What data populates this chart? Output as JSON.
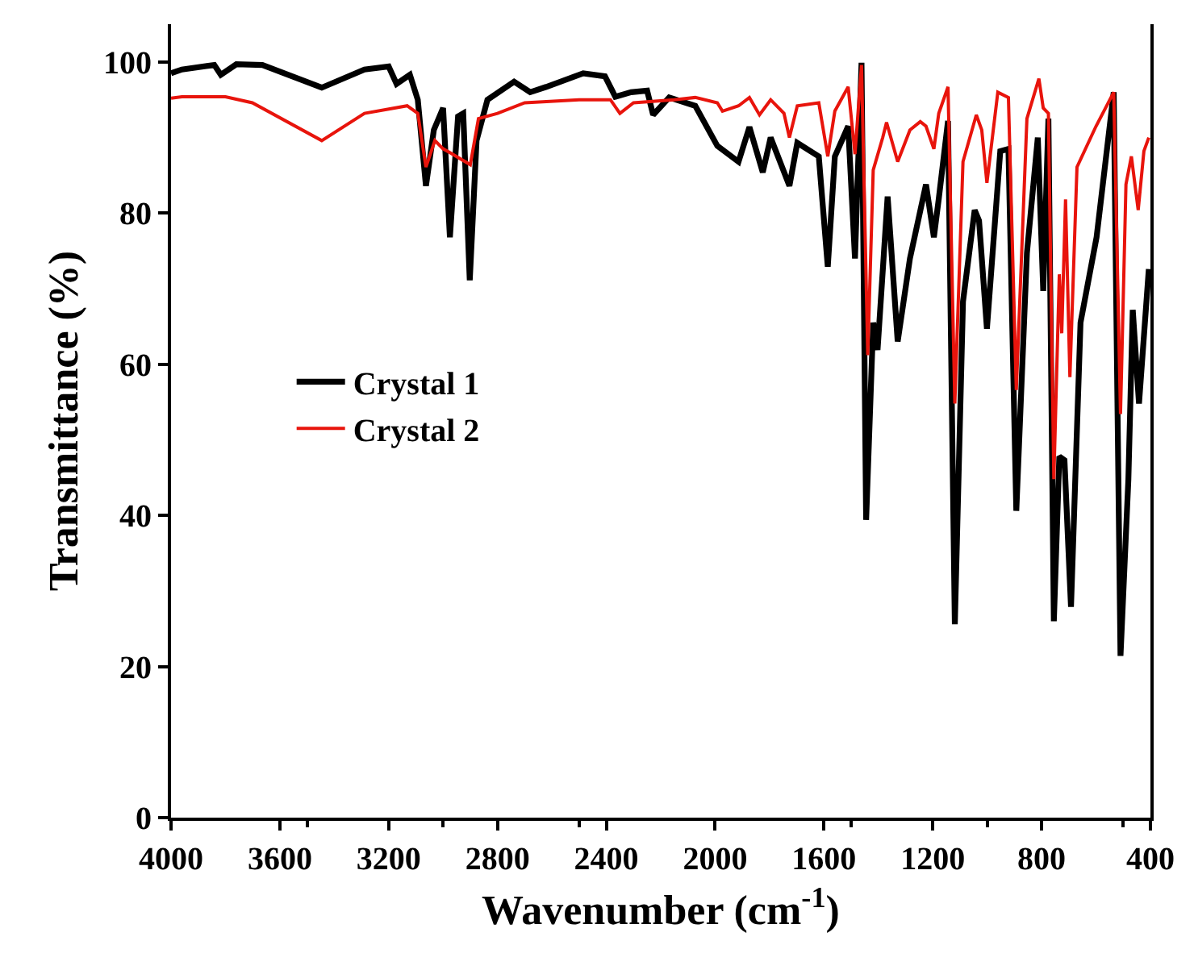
{
  "chart_data": {
    "type": "line",
    "xlabel": "Wavenumber (cm$^{-1}$)",
    "ylabel": "Transmittance (%)",
    "xlim": [
      4000,
      400
    ],
    "xticks": [
      4000,
      3600,
      3200,
      2800,
      2400,
      2000,
      1600,
      1200,
      800,
      400
    ],
    "ylim": [
      0,
      105
    ],
    "yticks": [
      0,
      20,
      40,
      60,
      80,
      100
    ],
    "legend": "left",
    "line_style": "solid",
    "series": [
      {
        "name": "Crystal 1",
        "color": "#000000",
        "x": [
          4000,
          3960,
          3841,
          3817,
          3760,
          3664,
          3446,
          3289,
          3200,
          3171,
          3122,
          3093,
          3063,
          3034,
          3000,
          2975,
          2945,
          2926,
          2902,
          2877,
          2837,
          2739,
          2680,
          2621,
          2485,
          2405,
          2367,
          2309,
          2250,
          2228,
          2169,
          2073,
          1992,
          1914,
          1874,
          1825,
          1796,
          1727,
          1698,
          1619,
          1586,
          1560,
          1511,
          1486,
          1462,
          1445,
          1419,
          1403,
          1366,
          1329,
          1284,
          1225,
          1196,
          1178,
          1144,
          1119,
          1089,
          1046,
          1030,
          1001,
          952,
          922,
          893,
          854,
          814,
          794,
          775,
          755,
          735,
          716,
          692,
          657,
          598,
          535,
          510,
          481,
          465,
          442,
          406
        ],
        "values": [
          98.5,
          99,
          99.6,
          98.3,
          99.7,
          99.6,
          96.6,
          99,
          99.4,
          97.1,
          98.3,
          95,
          83.6,
          91,
          93.9,
          76.8,
          92.8,
          93.2,
          71.1,
          89.6,
          95,
          97.4,
          96,
          96.7,
          98.5,
          98.1,
          95.4,
          96,
          96.2,
          93,
          95.3,
          94.2,
          88.9,
          86.8,
          91.4,
          85.4,
          90,
          83.6,
          89.3,
          87.5,
          72.9,
          87.5,
          91.5,
          74,
          99.9,
          39.4,
          65.5,
          61.9,
          82.2,
          63,
          74,
          83.8,
          76.8,
          81.9,
          92.2,
          25.6,
          68.3,
          80.4,
          79,
          64.7,
          88.2,
          88.5,
          40.6,
          74.7,
          90,
          69.7,
          92.5,
          26,
          47.8,
          47.3,
          27.9,
          65.5,
          76.8,
          96,
          21.4,
          44.8,
          67.2,
          54.8,
          72.6
        ]
      },
      {
        "name": "Crystal 2",
        "color": "#e8140c",
        "x": [
          4000,
          3960,
          3800,
          3701,
          3446,
          3289,
          3132,
          3093,
          3063,
          3030,
          3000,
          2975,
          2900,
          2870,
          2800,
          2700,
          2500,
          2385,
          2350,
          2300,
          2150,
          2073,
          1992,
          1973,
          1914,
          1874,
          1837,
          1796,
          1747,
          1727,
          1698,
          1619,
          1586,
          1560,
          1511,
          1486,
          1462,
          1439,
          1419,
          1384,
          1370,
          1329,
          1284,
          1246,
          1225,
          1196,
          1178,
          1144,
          1119,
          1089,
          1040,
          1020,
          1001,
          961,
          922,
          893,
          854,
          810,
          794,
          775,
          755,
          735,
          726,
          712,
          696,
          670,
          600,
          535,
          510,
          490,
          470,
          445,
          424,
          406
        ],
        "values": [
          95.2,
          95.4,
          95.4,
          94.6,
          89.6,
          93.2,
          94.2,
          93.2,
          86.1,
          89.6,
          88.5,
          88,
          86.4,
          92.5,
          93.2,
          94.6,
          95,
          95,
          93.2,
          94.6,
          95,
          95.3,
          94.6,
          93.5,
          94.2,
          95.3,
          93,
          95,
          93.2,
          90,
          94.2,
          94.6,
          87.5,
          93.5,
          96.7,
          87.8,
          99.6,
          61.2,
          85.7,
          90,
          92,
          86.8,
          91,
          92.1,
          91.5,
          88.5,
          93.2,
          96.7,
          54.8,
          86.8,
          93,
          91,
          84,
          96,
          95.3,
          56.6,
          92.5,
          97.8,
          93.9,
          93.2,
          44.8,
          71.9,
          64.1,
          81.8,
          58.3,
          86.1,
          91.5,
          96,
          53.4,
          83.8,
          87.5,
          80.4,
          88.2,
          90
        ]
      }
    ]
  }
}
